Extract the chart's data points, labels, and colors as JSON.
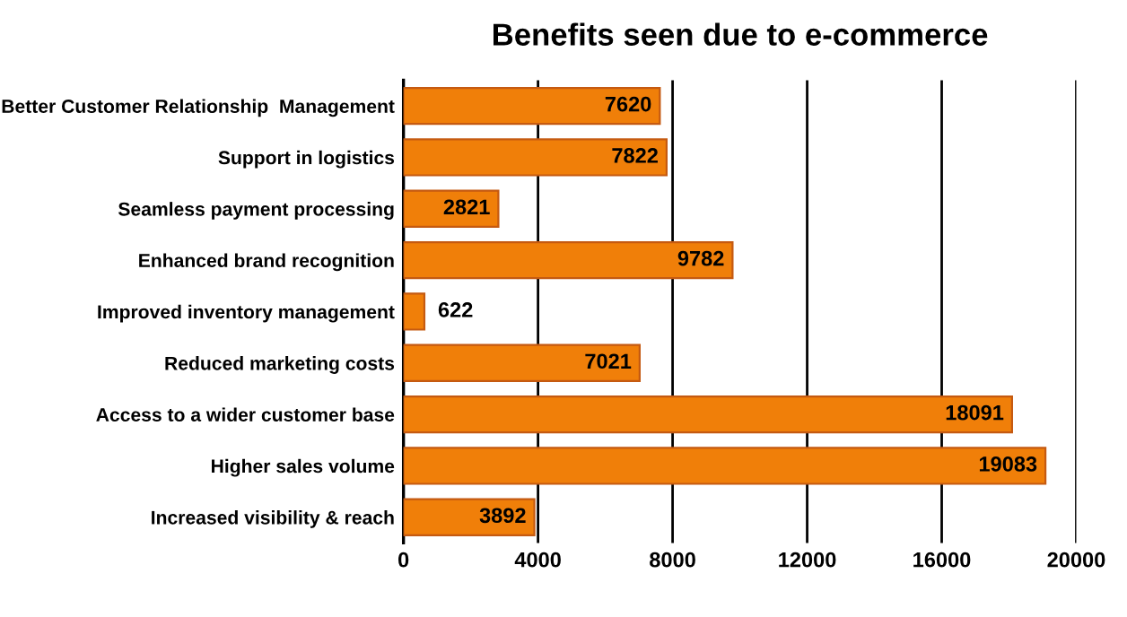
{
  "chart_data": {
    "type": "bar",
    "orientation": "horizontal",
    "title": "Benefits seen due to e-commerce",
    "categories": [
      "Better Customer Relationship  Management",
      "Support in logistics",
      "Seamless payment processing",
      "Enhanced brand recognition",
      "Improved inventory management",
      "Reduced marketing costs",
      "Access to a wider customer base",
      "Higher sales volume",
      "Increased visibility & reach"
    ],
    "values": [
      7620,
      7822,
      2821,
      9782,
      622,
      7021,
      18091,
      19083,
      3892
    ],
    "color": "#f07f09",
    "xlim": [
      0,
      20000
    ],
    "xticks": [
      0,
      4000,
      8000,
      12000,
      16000,
      20000
    ],
    "grid": "x",
    "data_labels": true
  }
}
